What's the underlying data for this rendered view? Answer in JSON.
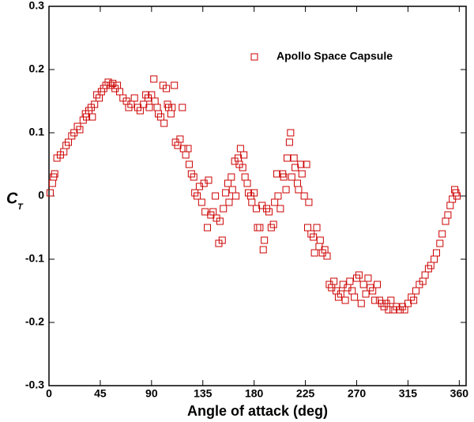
{
  "chart_data": {
    "type": "scatter",
    "x_label": "Angle of attack (deg)",
    "y_label": "C",
    "y_label_subscript": "T",
    "xlim": [
      0,
      366
    ],
    "ylim": [
      -0.3,
      0.3
    ],
    "xticks": [
      0,
      45,
      90,
      135,
      180,
      225,
      270,
      315,
      360
    ],
    "yticks": [
      -0.3,
      -0.2,
      -0.1,
      0,
      0.1,
      0.2,
      0.3
    ],
    "grid": false,
    "legend": "upper right",
    "series": [
      {
        "name": "Apollo Space Capsule",
        "color": "#cc0000",
        "marker": "hollow-square",
        "x": [
          1,
          3,
          4,
          5,
          7,
          10,
          13,
          15,
          17,
          20,
          22,
          25,
          27,
          30,
          32,
          33,
          35,
          37,
          38,
          40,
          42,
          44,
          46,
          48,
          50,
          52,
          54,
          56,
          58,
          60,
          62,
          65,
          68,
          70,
          72,
          75,
          78,
          80,
          83,
          85,
          87,
          88,
          90,
          92,
          93,
          95,
          96,
          98,
          100,
          101,
          103,
          104,
          105,
          107,
          108,
          110,
          111,
          113,
          115,
          117,
          118,
          120,
          122,
          123,
          125,
          127,
          128,
          130,
          132,
          134,
          136,
          137,
          139,
          140,
          142,
          144,
          146,
          147,
          149,
          150,
          152,
          153,
          155,
          157,
          158,
          160,
          161,
          163,
          164,
          166,
          167,
          168,
          170,
          171,
          172,
          174,
          175,
          177,
          178,
          180,
          182,
          183,
          185,
          187,
          188,
          189,
          191,
          193,
          195,
          197,
          198,
          200,
          201,
          203,
          205,
          206,
          208,
          209,
          211,
          212,
          213,
          215,
          216,
          218,
          219,
          221,
          222,
          224,
          226,
          227,
          228,
          230,
          232,
          233,
          235,
          237,
          238,
          240,
          242,
          244,
          246,
          248,
          250,
          252,
          254,
          256,
          258,
          260,
          262,
          264,
          266,
          268,
          270,
          272,
          274,
          276,
          278,
          280,
          282,
          284,
          286,
          288,
          290,
          292,
          294,
          296,
          298,
          300,
          302,
          305,
          308,
          310,
          312,
          315,
          318,
          320,
          322,
          325,
          328,
          330,
          333,
          335,
          338,
          340,
          343,
          345,
          348,
          350,
          352,
          354,
          356,
          357,
          358
        ],
        "values": [
          0.005,
          0.02,
          0.03,
          0.035,
          0.06,
          0.065,
          0.07,
          0.08,
          0.085,
          0.095,
          0.1,
          0.11,
          0.105,
          0.12,
          0.13,
          0.125,
          0.135,
          0.14,
          0.125,
          0.145,
          0.16,
          0.155,
          0.165,
          0.17,
          0.175,
          0.18,
          0.175,
          0.178,
          0.17,
          0.175,
          0.165,
          0.155,
          0.15,
          0.14,
          0.145,
          0.155,
          0.14,
          0.135,
          0.145,
          0.16,
          0.155,
          0.14,
          0.16,
          0.185,
          0.15,
          0.14,
          0.13,
          0.125,
          0.175,
          0.115,
          0.17,
          0.145,
          0.14,
          0.13,
          0.14,
          0.175,
          0.085,
          0.08,
          0.09,
          0.14,
          0.075,
          0.065,
          0.075,
          0.05,
          0.035,
          0.03,
          0.005,
          0.0,
          0.015,
          -0.01,
          0.02,
          -0.025,
          -0.05,
          0.025,
          -0.03,
          -0.025,
          0.0,
          -0.035,
          -0.075,
          -0.04,
          -0.07,
          -0.02,
          0.005,
          0.02,
          -0.01,
          0.03,
          0.01,
          0.055,
          0.0,
          0.06,
          0.05,
          0.075,
          0.045,
          0.065,
          0.03,
          0.02,
          0.005,
          0.0,
          -0.01,
          0.005,
          -0.02,
          -0.05,
          -0.05,
          -0.015,
          -0.085,
          -0.07,
          -0.02,
          -0.025,
          -0.05,
          -0.045,
          -0.01,
          0.035,
          0.0,
          -0.02,
          0.035,
          0.03,
          0.01,
          0.06,
          0.085,
          0.1,
          0.03,
          0.06,
          0.045,
          0.02,
          0.01,
          0.05,
          0.035,
          0.0,
          0.05,
          -0.05,
          -0.01,
          -0.06,
          -0.065,
          -0.09,
          -0.05,
          -0.08,
          -0.07,
          -0.09,
          -0.085,
          -0.095,
          -0.14,
          -0.145,
          -0.135,
          -0.15,
          -0.16,
          -0.155,
          -0.14,
          -0.165,
          -0.145,
          -0.135,
          -0.15,
          -0.16,
          -0.13,
          -0.125,
          -0.17,
          -0.14,
          -0.155,
          -0.13,
          -0.145,
          -0.15,
          -0.165,
          -0.14,
          -0.165,
          -0.17,
          -0.175,
          -0.17,
          -0.18,
          -0.165,
          -0.18,
          -0.175,
          -0.18,
          -0.175,
          -0.18,
          -0.17,
          -0.16,
          -0.165,
          -0.15,
          -0.14,
          -0.135,
          -0.125,
          -0.115,
          -0.11,
          -0.1,
          -0.09,
          -0.075,
          -0.06,
          -0.04,
          -0.03,
          -0.015,
          -0.005,
          0.01,
          0.005,
          0.0
        ]
      }
    ]
  }
}
